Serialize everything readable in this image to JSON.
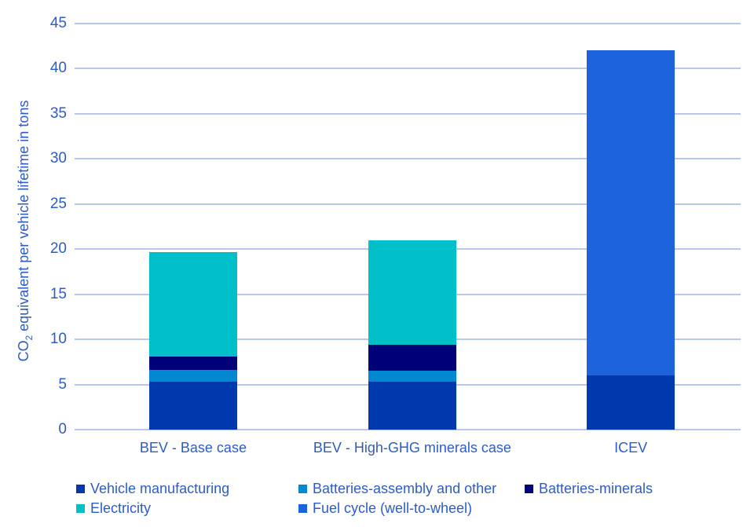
{
  "chart_data": {
    "type": "bar",
    "stacked": true,
    "categories": [
      "BEV - Base case",
      "BEV - High-GHG minerals case",
      "ICEV"
    ],
    "series": [
      {
        "name": "Vehicle manufacturing",
        "color": "#0038ae",
        "values": [
          5.3,
          5.3,
          6.0
        ]
      },
      {
        "name": "Batteries-assembly and other",
        "color": "#0089d0",
        "values": [
          1.3,
          1.2,
          0
        ]
      },
      {
        "name": "Batteries-minerals",
        "color": "#000078",
        "values": [
          1.5,
          2.9,
          0
        ]
      },
      {
        "name": "Electricity",
        "color": "#00bfc8",
        "values": [
          11.6,
          11.6,
          0
        ]
      },
      {
        "name": "Fuel cycle (well-to-wheel)",
        "color": "#1c63dc",
        "values": [
          0,
          0,
          36.0
        ]
      }
    ],
    "totals": [
      19.7,
      21.0,
      42.0
    ],
    "ylabel_parts": {
      "prefix": "CO",
      "sub": "2",
      "rest": " equivalent per vehicle lifetime in tons"
    },
    "xlabel": "",
    "title": "",
    "ylim": [
      0,
      45
    ],
    "yticks": [
      0,
      5,
      10,
      15,
      20,
      25,
      30,
      35,
      40,
      45
    ],
    "grid": true,
    "legend_position": "bottom"
  },
  "colors": {
    "axis_text": "#2e5cc5",
    "gridline": "#b7c8ec",
    "background": "#ffffff"
  }
}
